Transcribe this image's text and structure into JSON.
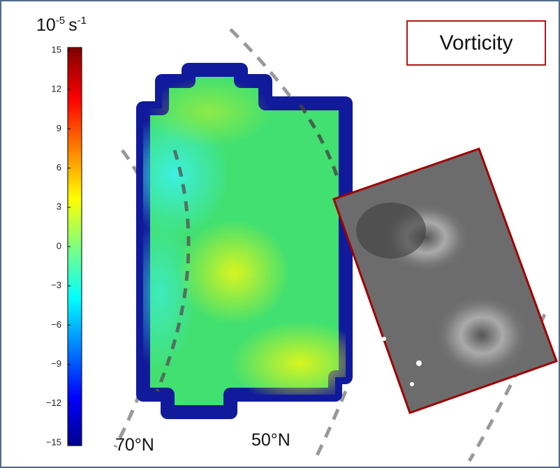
{
  "title": "Vorticity",
  "colorbar": {
    "unit": {
      "base": "10",
      "exp": "-5",
      "unit": "s",
      "unit_exp": "-1"
    },
    "lim": [
      -15,
      15
    ],
    "ticks": [
      15,
      12,
      9,
      6,
      3,
      0,
      {
        "value": -3,
        "label": "−3"
      },
      {
        "value": -6,
        "label": "−6"
      },
      {
        "value": -9,
        "label": "−9"
      },
      {
        "value": -12,
        "label": "−12"
      },
      {
        "value": -15,
        "label": "−15"
      }
    ]
  },
  "latitude_labels": [
    "70°N",
    "50°N"
  ]
}
